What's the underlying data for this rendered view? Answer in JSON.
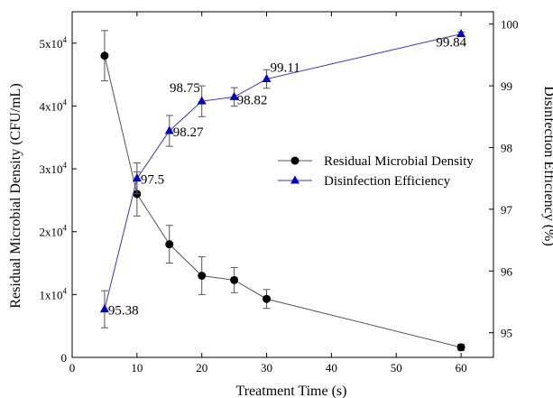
{
  "chart_data": {
    "type": "line",
    "xlabel": "Treatment Time (s)",
    "ylabel_left": "Residual Microbial Density (CFU/mL)",
    "ylabel_right": "Disinfection Efficiency (%)",
    "xlim": [
      0,
      65
    ],
    "ylim_left": [
      0,
      55000
    ],
    "ylim_right": [
      94.6,
      100.2
    ],
    "x_ticks": [
      "0",
      "10",
      "20",
      "30",
      "40",
      "50",
      "60"
    ],
    "y_left_ticks": [
      "0",
      "1x10",
      "2x10",
      "3x10",
      "4x10",
      "5x10"
    ],
    "y_left_tick_exponent": "4",
    "y_right_ticks": [
      "95",
      "96",
      "97",
      "98",
      "99",
      "100"
    ],
    "grid": false,
    "legend_position": "center-right",
    "series": [
      {
        "name": "Residual Microbial Density",
        "axis": "left",
        "color": "#000000",
        "line_color": "#555555",
        "marker": "circle",
        "x": [
          5,
          10,
          15,
          20,
          25,
          30,
          60
        ],
        "y": [
          48000,
          26000,
          18000,
          13000,
          12300,
          9300,
          1600
        ],
        "error": [
          4000,
          3500,
          3000,
          3000,
          2000,
          1500,
          500
        ]
      },
      {
        "name": "Disinfection Efficiency",
        "axis": "right",
        "color": "#0000CC",
        "line_color": "#3333CC",
        "marker": "triangle",
        "x": [
          5,
          10,
          15,
          20,
          25,
          30,
          60
        ],
        "y": [
          95.38,
          97.5,
          98.27,
          98.75,
          98.82,
          99.11,
          99.84
        ],
        "error": [
          0.3,
          0.25,
          0.25,
          0.25,
          0.15,
          0.15,
          0.03
        ],
        "labels": [
          "95.38",
          "97.5",
          "98.27",
          "98.75",
          "98.82",
          "99.11",
          "99.84"
        ]
      }
    ]
  }
}
